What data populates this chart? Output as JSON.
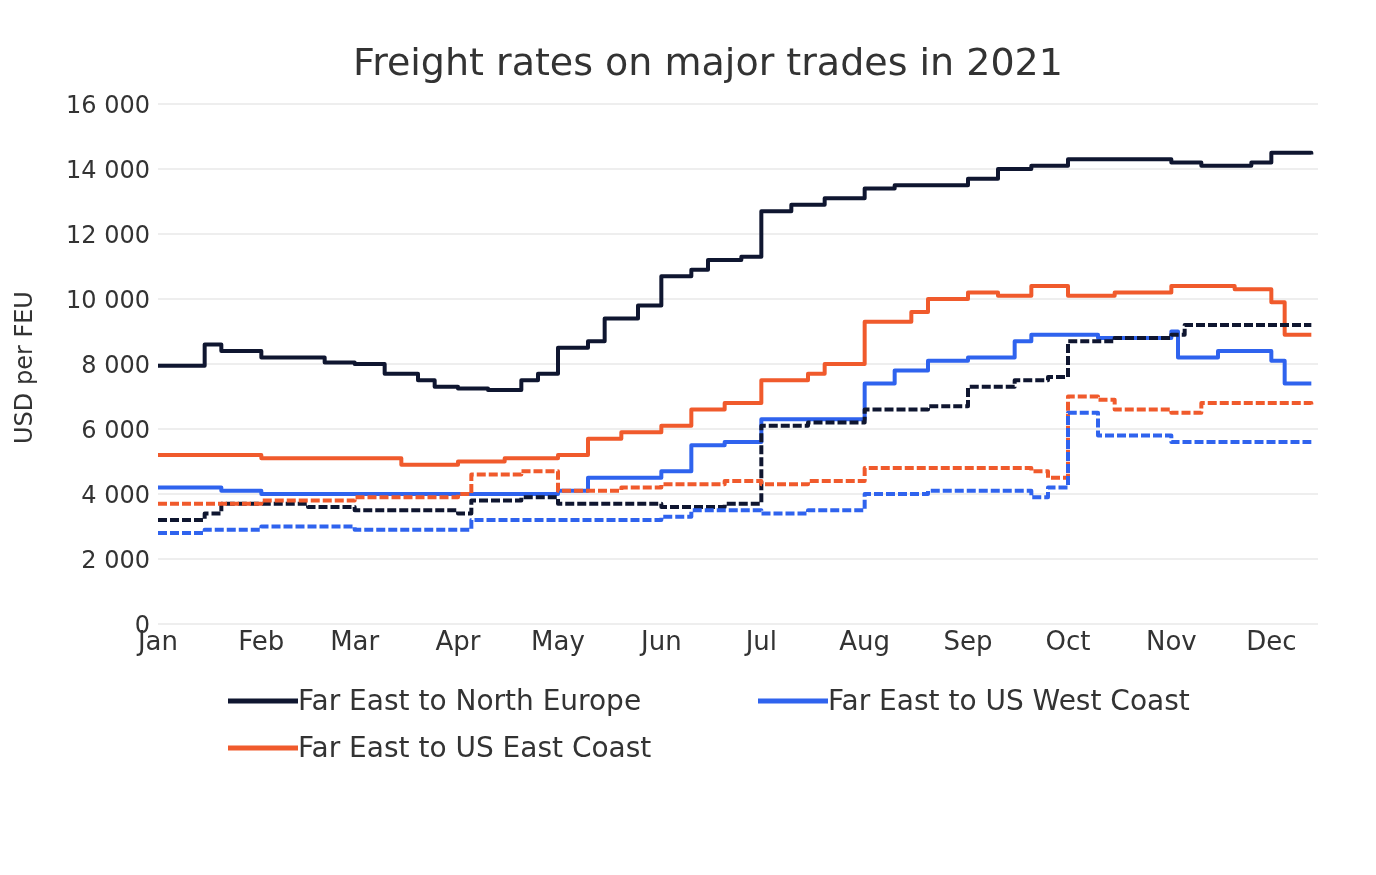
{
  "chart_data": {
    "type": "step",
    "title": "Freight rates on major trades in 2021",
    "ylabel": "USD per FEU",
    "xlim": [
      "2021-01-01",
      "2021-12-15"
    ],
    "xticks": [
      {
        "value": "2021-01-01",
        "label": "Jan"
      },
      {
        "value": "2021-02-01",
        "label": "Feb"
      },
      {
        "value": "2021-03-01",
        "label": "Mar"
      },
      {
        "value": "2021-04-01",
        "label": "Apr"
      },
      {
        "value": "2021-05-01",
        "label": "May"
      },
      {
        "value": "2021-06-01",
        "label": "Jun"
      },
      {
        "value": "2021-07-01",
        "label": "Jul"
      },
      {
        "value": "2021-08-01",
        "label": "Aug"
      },
      {
        "value": "2021-09-01",
        "label": "Sep"
      },
      {
        "value": "2021-10-01",
        "label": "Oct"
      },
      {
        "value": "2021-11-01",
        "label": "Nov"
      },
      {
        "value": "2021-12-01",
        "label": "Dec"
      }
    ],
    "ylim": [
      0,
      16000
    ],
    "yticks": [
      {
        "value": 0,
        "label": "0"
      },
      {
        "value": 2000,
        "label": "2 000"
      },
      {
        "value": 4000,
        "label": "4 000"
      },
      {
        "value": 6000,
        "label": "6 000"
      },
      {
        "value": 8000,
        "label": "8 000"
      },
      {
        "value": 10000,
        "label": "10 000"
      },
      {
        "value": 12000,
        "label": "12 000"
      },
      {
        "value": 14000,
        "label": "14 000"
      },
      {
        "value": 16000,
        "label": "16 000"
      }
    ],
    "grid": "y",
    "legend": "bottom",
    "marker": "none",
    "series": [
      {
        "name": "Far East to North Europe",
        "color": "#0f1630",
        "line_style": "solid",
        "x": [
          "2021-01-01",
          "2021-01-10",
          "2021-01-15",
          "2021-01-20",
          "2021-02-01",
          "2021-02-20",
          "2021-03-01",
          "2021-03-10",
          "2021-03-20",
          "2021-03-25",
          "2021-04-01",
          "2021-04-10",
          "2021-04-20",
          "2021-04-25",
          "2021-05-01",
          "2021-05-10",
          "2021-05-15",
          "2021-05-25",
          "2021-06-01",
          "2021-06-10",
          "2021-06-15",
          "2021-06-25",
          "2021-07-01",
          "2021-07-10",
          "2021-07-20",
          "2021-08-01",
          "2021-08-10",
          "2021-09-01",
          "2021-09-10",
          "2021-09-20",
          "2021-10-01",
          "2021-11-01",
          "2021-11-10",
          "2021-11-25",
          "2021-12-01",
          "2021-12-13"
        ],
        "values": [
          7950,
          7950,
          8600,
          8400,
          8200,
          8050,
          8000,
          7700,
          7500,
          7300,
          7250,
          7200,
          7500,
          7700,
          8500,
          8700,
          9400,
          9800,
          10700,
          10900,
          11200,
          11300,
          12700,
          12900,
          13100,
          13400,
          13500,
          13700,
          14000,
          14100,
          14300,
          14200,
          14100,
          14200,
          14500,
          14450
        ]
      },
      {
        "name": "Far East to US West Coast",
        "color": "#2f63ee",
        "line_style": "solid",
        "x": [
          "2021-01-01",
          "2021-01-20",
          "2021-02-01",
          "2021-05-01",
          "2021-05-10",
          "2021-06-01",
          "2021-06-10",
          "2021-06-20",
          "2021-07-01",
          "2021-07-15",
          "2021-08-01",
          "2021-08-10",
          "2021-08-20",
          "2021-09-01",
          "2021-09-15",
          "2021-09-20",
          "2021-10-10",
          "2021-11-01",
          "2021-11-03",
          "2021-11-15",
          "2021-12-01",
          "2021-12-05",
          "2021-12-13"
        ],
        "values": [
          4200,
          4100,
          4000,
          4100,
          4500,
          4700,
          5500,
          5600,
          6300,
          6300,
          7400,
          7800,
          8100,
          8200,
          8700,
          8900,
          8800,
          9000,
          8200,
          8400,
          8100,
          7400,
          7400
        ]
      },
      {
        "name": "Far East to US East Coast",
        "color": "#f05a2c",
        "line_style": "solid",
        "x": [
          "2021-01-01",
          "2021-02-01",
          "2021-03-15",
          "2021-04-01",
          "2021-04-15",
          "2021-05-01",
          "2021-05-10",
          "2021-05-20",
          "2021-06-01",
          "2021-06-10",
          "2021-06-20",
          "2021-07-01",
          "2021-07-15",
          "2021-07-20",
          "2021-08-01",
          "2021-08-15",
          "2021-08-20",
          "2021-09-01",
          "2021-09-10",
          "2021-09-20",
          "2021-10-01",
          "2021-10-15",
          "2021-11-01",
          "2021-11-20",
          "2021-12-01",
          "2021-12-05",
          "2021-12-13"
        ],
        "values": [
          5200,
          5100,
          4900,
          5000,
          5100,
          5200,
          5700,
          5900,
          6100,
          6600,
          6800,
          7500,
          7700,
          8000,
          9300,
          9600,
          10000,
          10200,
          10100,
          10400,
          10100,
          10200,
          10400,
          10300,
          9900,
          8900,
          8900
        ]
      },
      {
        "color": "#0f1630",
        "line_style": "dashed",
        "x": [
          "2021-01-01",
          "2021-01-15",
          "2021-01-20",
          "2021-02-15",
          "2021-03-01",
          "2021-04-01",
          "2021-04-05",
          "2021-04-20",
          "2021-05-01",
          "2021-06-01",
          "2021-06-20",
          "2021-07-01",
          "2021-07-15",
          "2021-08-01",
          "2021-08-20",
          "2021-09-01",
          "2021-09-15",
          "2021-09-25",
          "2021-10-01",
          "2021-10-15",
          "2021-11-01",
          "2021-11-05",
          "2021-12-13"
        ],
        "values": [
          3200,
          3400,
          3700,
          3600,
          3500,
          3400,
          3800,
          3900,
          3700,
          3600,
          3700,
          6100,
          6200,
          6600,
          6700,
          7300,
          7500,
          7600,
          8700,
          8800,
          8900,
          9200,
          9200
        ]
      },
      {
        "color": "#f05a2c",
        "line_style": "dashed",
        "x": [
          "2021-01-01",
          "2021-02-01",
          "2021-03-01",
          "2021-04-01",
          "2021-04-05",
          "2021-04-20",
          "2021-05-01",
          "2021-05-20",
          "2021-06-01",
          "2021-06-20",
          "2021-07-01",
          "2021-07-15",
          "2021-08-01",
          "2021-09-20",
          "2021-09-25",
          "2021-10-01",
          "2021-10-10",
          "2021-10-15",
          "2021-11-01",
          "2021-11-10",
          "2021-12-13"
        ],
        "values": [
          3700,
          3800,
          3900,
          4000,
          4600,
          4700,
          4100,
          4200,
          4300,
          4400,
          4300,
          4400,
          4800,
          4700,
          4500,
          7000,
          6900,
          6600,
          6500,
          6800,
          6700
        ]
      },
      {
        "color": "#2f63ee",
        "line_style": "dashed",
        "x": [
          "2021-01-01",
          "2021-01-15",
          "2021-02-01",
          "2021-03-01",
          "2021-04-05",
          "2021-06-01",
          "2021-06-10",
          "2021-07-01",
          "2021-07-15",
          "2021-08-01",
          "2021-08-20",
          "2021-09-20",
          "2021-09-25",
          "2021-10-01",
          "2021-10-10",
          "2021-11-01",
          "2021-12-13"
        ],
        "values": [
          2800,
          2900,
          3000,
          2900,
          3200,
          3300,
          3500,
          3400,
          3500,
          4000,
          4100,
          3900,
          4200,
          6500,
          5800,
          5600,
          5600
        ]
      }
    ]
  }
}
